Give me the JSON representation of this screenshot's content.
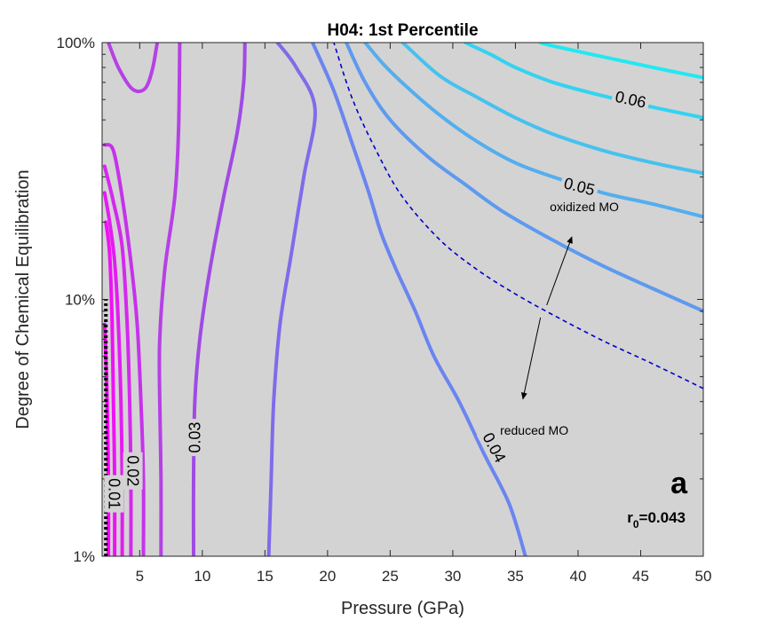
{
  "chart_data": {
    "type": "contour",
    "title": "H04: 1st Percentile",
    "xlabel": "Pressure (GPa)",
    "ylabel": "Degree of Chemical Equilibration",
    "xlim": [
      2,
      50
    ],
    "ylim": [
      1,
      100
    ],
    "yscale": "log",
    "x_ticks": [
      5,
      10,
      15,
      20,
      25,
      30,
      35,
      40,
      45,
      50
    ],
    "x_tick_labels": [
      "5",
      "10",
      "15",
      "20",
      "25",
      "30",
      "35",
      "40",
      "45",
      "50"
    ],
    "y_ticks": [
      1,
      10,
      100
    ],
    "y_tick_labels": [
      "1%",
      "10%",
      "100%"
    ],
    "background": "#d3d3d3",
    "grid": false,
    "contours": [
      {
        "level": 0.0,
        "label": "",
        "color": "#ff00ff",
        "points": [
          [
            2.5,
            1
          ],
          [
            2.5,
            2
          ],
          [
            2.4,
            4
          ],
          [
            2.3,
            6
          ],
          [
            2.2,
            8
          ]
        ]
      },
      {
        "level": 0.005,
        "label": "",
        "color": "#f010f6",
        "points": [
          [
            3.0,
            1
          ],
          [
            3.0,
            2
          ],
          [
            2.9,
            4
          ],
          [
            2.8,
            8
          ],
          [
            2.6,
            15
          ],
          [
            2.3,
            20
          ]
        ]
      },
      {
        "level": 0.01,
        "label": "0.01",
        "color": "#e21df2",
        "points": [
          [
            3.6,
            1
          ],
          [
            3.6,
            2
          ],
          [
            3.5,
            4
          ],
          [
            3.3,
            8
          ],
          [
            3.0,
            14
          ],
          [
            2.6,
            20
          ],
          [
            2.2,
            26
          ]
        ]
      },
      {
        "level": 0.015,
        "label": "",
        "color": "#d528ee",
        "points": [
          [
            4.3,
            1
          ],
          [
            4.3,
            2
          ],
          [
            4.2,
            4
          ],
          [
            4.0,
            8
          ],
          [
            3.6,
            16
          ],
          [
            2.9,
            24
          ],
          [
            2.2,
            33
          ]
        ]
      },
      {
        "level": 0.02,
        "label": "0.02",
        "color": "#c632eb",
        "points": [
          [
            5.3,
            1
          ],
          [
            5.3,
            2
          ],
          [
            5.1,
            4
          ],
          [
            4.8,
            8
          ],
          [
            4.3,
            14
          ],
          [
            3.6,
            25
          ],
          [
            2.9,
            38
          ],
          [
            2.2,
            40
          ]
        ]
      },
      {
        "level": 0.025,
        "label": "",
        "color": "#b640e6",
        "points": [
          [
            6.7,
            1
          ],
          [
            6.7,
            2
          ],
          [
            6.6,
            4
          ],
          [
            6.6,
            7
          ],
          [
            7.0,
            13
          ],
          [
            7.8,
            25
          ],
          [
            8.1,
            45
          ],
          [
            8.2,
            100
          ]
        ]
      },
      {
        "level": 0.025,
        "label": "",
        "color": "#b640e6",
        "points": [
          [
            2.5,
            100
          ],
          [
            3.3,
            80
          ],
          [
            4.4,
            66
          ],
          [
            5.4,
            66
          ],
          [
            6.0,
            78
          ],
          [
            6.4,
            100
          ]
        ]
      },
      {
        "level": 0.03,
        "label": "0.03",
        "color": "#a04ae4",
        "points": [
          [
            9.3,
            1
          ],
          [
            9.3,
            2
          ],
          [
            9.4,
            4
          ],
          [
            9.8,
            7
          ],
          [
            10.6,
            13
          ],
          [
            11.7,
            25
          ],
          [
            12.8,
            45
          ],
          [
            13.3,
            70
          ],
          [
            13.4,
            100
          ]
        ]
      },
      {
        "level": 0.035,
        "label": "",
        "color": "#7e6cea",
        "points": [
          [
            15.3,
            1
          ],
          [
            15.5,
            2
          ],
          [
            15.7,
            4
          ],
          [
            16.2,
            8
          ],
          [
            17.1,
            15
          ],
          [
            18.1,
            30
          ],
          [
            19.0,
            55
          ],
          [
            17.5,
            80
          ],
          [
            16.0,
            100
          ]
        ]
      },
      {
        "level": 0.04,
        "label": "0.04",
        "color": "#6a85f0",
        "points": [
          [
            35.8,
            1
          ],
          [
            34.5,
            1.6
          ],
          [
            32.5,
            2.5
          ],
          [
            30.5,
            4
          ],
          [
            28.5,
            6
          ],
          [
            27.0,
            9
          ],
          [
            25.5,
            13
          ],
          [
            24.3,
            18
          ],
          [
            23.3,
            26
          ],
          [
            22.0,
            40
          ],
          [
            20.5,
            65
          ],
          [
            18.8,
            100
          ]
        ]
      },
      {
        "level": 0.045,
        "label": "",
        "color": "#5e9aef",
        "points": [
          [
            50,
            9
          ],
          [
            46,
            11
          ],
          [
            42,
            13.5
          ],
          [
            38,
            17
          ],
          [
            34,
            22
          ],
          [
            31,
            28
          ],
          [
            28,
            36
          ],
          [
            25,
            50
          ],
          [
            23,
            70
          ],
          [
            21.5,
            100
          ]
        ]
      },
      {
        "level": 0.05,
        "label": "0.05",
        "color": "#53aeef",
        "points": [
          [
            50,
            21
          ],
          [
            46,
            23.5
          ],
          [
            42,
            26
          ],
          [
            38,
            30
          ],
          [
            35,
            34
          ],
          [
            32,
            41
          ],
          [
            29,
            52
          ],
          [
            26.5,
            66
          ],
          [
            24.5,
            82
          ],
          [
            23,
            100
          ]
        ]
      },
      {
        "level": 0.055,
        "label": "",
        "color": "#45c2ef",
        "points": [
          [
            50,
            31
          ],
          [
            46,
            34
          ],
          [
            42,
            38
          ],
          [
            38,
            44
          ],
          [
            35,
            51
          ],
          [
            32,
            61
          ],
          [
            29,
            74
          ],
          [
            26,
            100
          ]
        ]
      },
      {
        "level": 0.06,
        "label": "0.06",
        "color": "#33d3f0",
        "points": [
          [
            50,
            51
          ],
          [
            46,
            56
          ],
          [
            42,
            62
          ],
          [
            38,
            70
          ],
          [
            35,
            80
          ],
          [
            33,
            90
          ],
          [
            31,
            100
          ]
        ]
      },
      {
        "level": 0.065,
        "label": "",
        "color": "#22e8f2",
        "points": [
          [
            50,
            73
          ],
          [
            46,
            80
          ],
          [
            42,
            88
          ],
          [
            38,
            97
          ],
          [
            37,
            100
          ]
        ]
      }
    ],
    "dashed_boundary": {
      "color": "#0000cc",
      "points": [
        [
          50,
          4.5
        ],
        [
          46,
          5.6
        ],
        [
          42,
          6.9
        ],
        [
          38,
          8.7
        ],
        [
          35,
          10.5
        ],
        [
          32,
          13
        ],
        [
          29,
          17
        ],
        [
          26,
          25
        ],
        [
          24,
          37
        ],
        [
          22,
          60
        ],
        [
          20.5,
          100
        ]
      ]
    },
    "dotted_line": {
      "color": "#000000",
      "points": [
        [
          2.3,
          1
        ],
        [
          2.3,
          10
        ]
      ]
    },
    "annotations": [
      {
        "text": "oxidized MO",
        "x": 40.5,
        "y": 23,
        "arrow_from": [
          37.5,
          9.5
        ],
        "arrow_to": [
          39.5,
          17.5
        ]
      },
      {
        "text": "reduced MO",
        "x": 36.5,
        "y": 3.1,
        "arrow_from": [
          37.0,
          8.5
        ],
        "arrow_to": [
          35.6,
          4.1
        ]
      }
    ],
    "panel_letter": "a",
    "r0_text": {
      "base": "r",
      "sub": "0",
      "rest": "=0.043"
    }
  }
}
